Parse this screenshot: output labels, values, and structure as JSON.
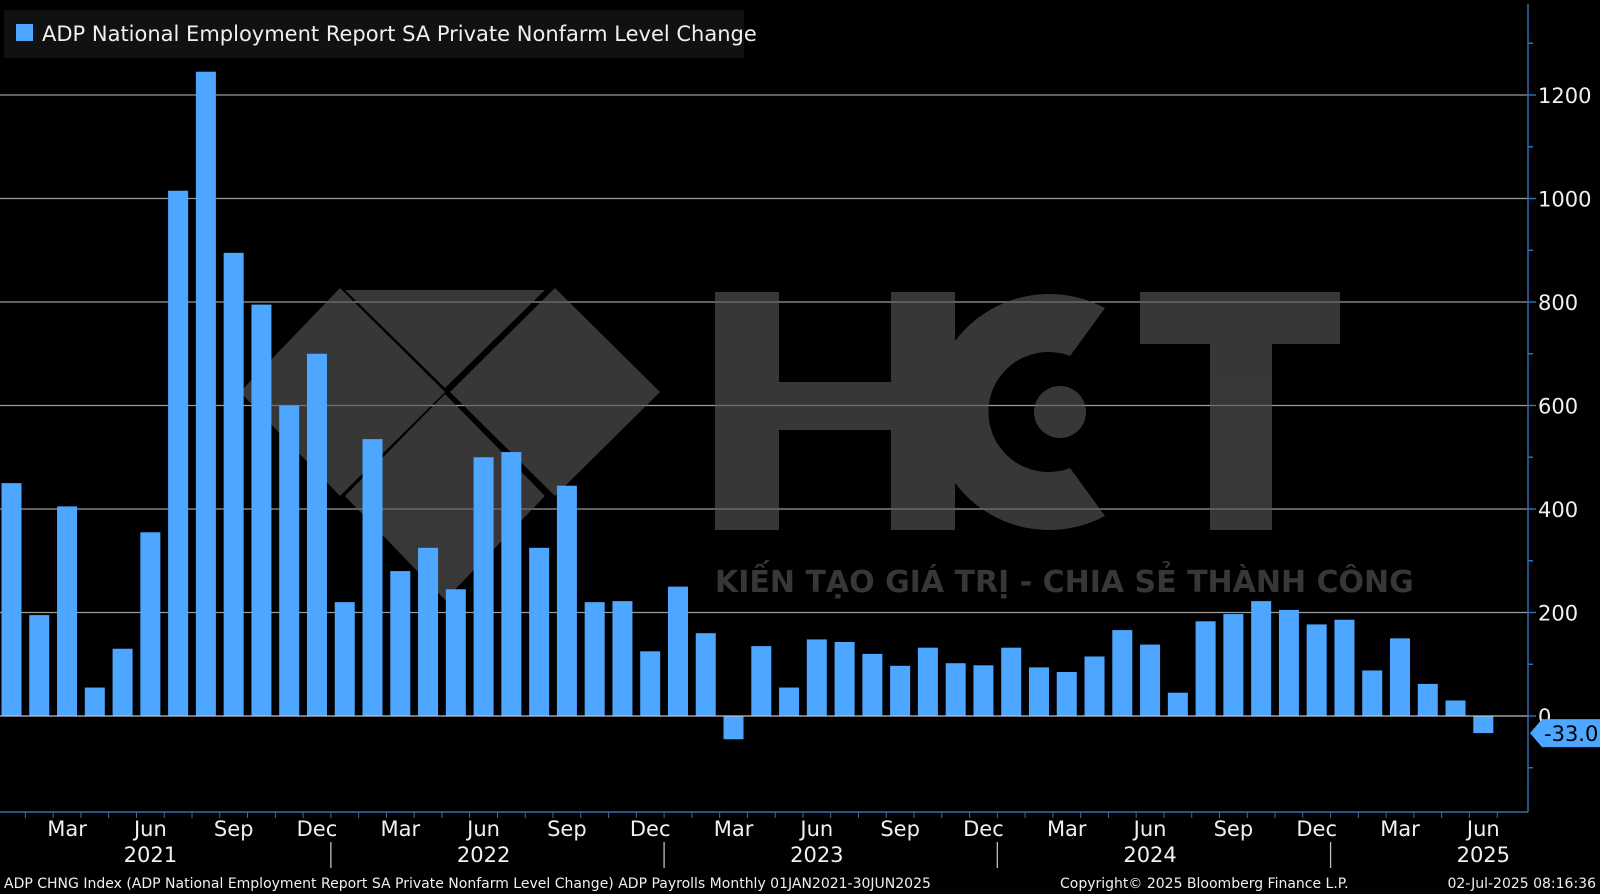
{
  "colors": {
    "background": "#000000",
    "bar": "#4da6ff",
    "grid": "#9a9a9a",
    "axis": "#2f6fb0",
    "text": "#f0f0f0",
    "watermark": "#5a5a5a"
  },
  "watermark": {
    "brand": "HCT",
    "tagline": "KIẾN TẠO GIÁ TRỊ - CHIA SẺ THÀNH CÔNG"
  },
  "footer": {
    "left": "ADP CHNG Index (ADP National Employment Report SA Private Nonfarm Level Change) ADP Payrolls  Monthly 01JAN2021-30JUN2025",
    "copyright": "Copyright© 2025 Bloomberg Finance L.P.",
    "timestamp": "02-Jul-2025 08:16:36"
  },
  "chart_data": {
    "type": "bar",
    "legend": "ADP National Employment Report SA Private Nonfarm Level Change",
    "legend_position": "top-left",
    "grid": true,
    "y_axis_side": "right",
    "ylim": [
      -180,
      1380
    ],
    "yticks": [
      0,
      200,
      400,
      600,
      800,
      1000,
      1200
    ],
    "last_value_label": "-33.0",
    "month_ticks": [
      "Mar",
      "Jun",
      "Sep",
      "Dec",
      "Mar",
      "Jun",
      "Sep",
      "Dec",
      "Mar",
      "Jun",
      "Sep",
      "Dec",
      "Mar",
      "Jun",
      "Sep",
      "Dec",
      "Mar",
      "Jun"
    ],
    "years": [
      "2021",
      "2022",
      "2023",
      "2024",
      "2025"
    ],
    "categories": [
      "Jan 2021",
      "Feb 2021",
      "Mar 2021",
      "Apr 2021",
      "May 2021",
      "Jun 2021",
      "Jul 2021",
      "Aug 2021",
      "Sep 2021",
      "Oct 2021",
      "Nov 2021",
      "Dec 2021",
      "Jan 2022",
      "Feb 2022",
      "Mar 2022",
      "Apr 2022",
      "May 2022",
      "Jun 2022",
      "Jul 2022",
      "Aug 2022",
      "Sep 2022",
      "Oct 2022",
      "Nov 2022",
      "Dec 2022",
      "Jan 2023",
      "Feb 2023",
      "Mar 2023",
      "Apr 2023",
      "May 2023",
      "Jun 2023",
      "Jul 2023",
      "Aug 2023",
      "Sep 2023",
      "Oct 2023",
      "Nov 2023",
      "Dec 2023",
      "Jan 2024",
      "Feb 2024",
      "Mar 2024",
      "Apr 2024",
      "May 2024",
      "Jun 2024",
      "Jul 2024",
      "Aug 2024",
      "Sep 2024",
      "Oct 2024",
      "Nov 2024",
      "Dec 2024",
      "Jan 2025",
      "Feb 2025",
      "Mar 2025",
      "Apr 2025",
      "May 2025",
      "Jun 2025"
    ],
    "values": [
      450,
      195,
      405,
      55,
      130,
      355,
      1015,
      1245,
      895,
      795,
      600,
      700,
      220,
      535,
      280,
      325,
      245,
      500,
      510,
      325,
      445,
      220,
      222,
      125,
      250,
      160,
      -45,
      135,
      55,
      148,
      143,
      120,
      97,
      132,
      102,
      98,
      132,
      94,
      85,
      115,
      166,
      138,
      45,
      183,
      197,
      222,
      205,
      177,
      186,
      88,
      150,
      62,
      30,
      -33
    ]
  }
}
